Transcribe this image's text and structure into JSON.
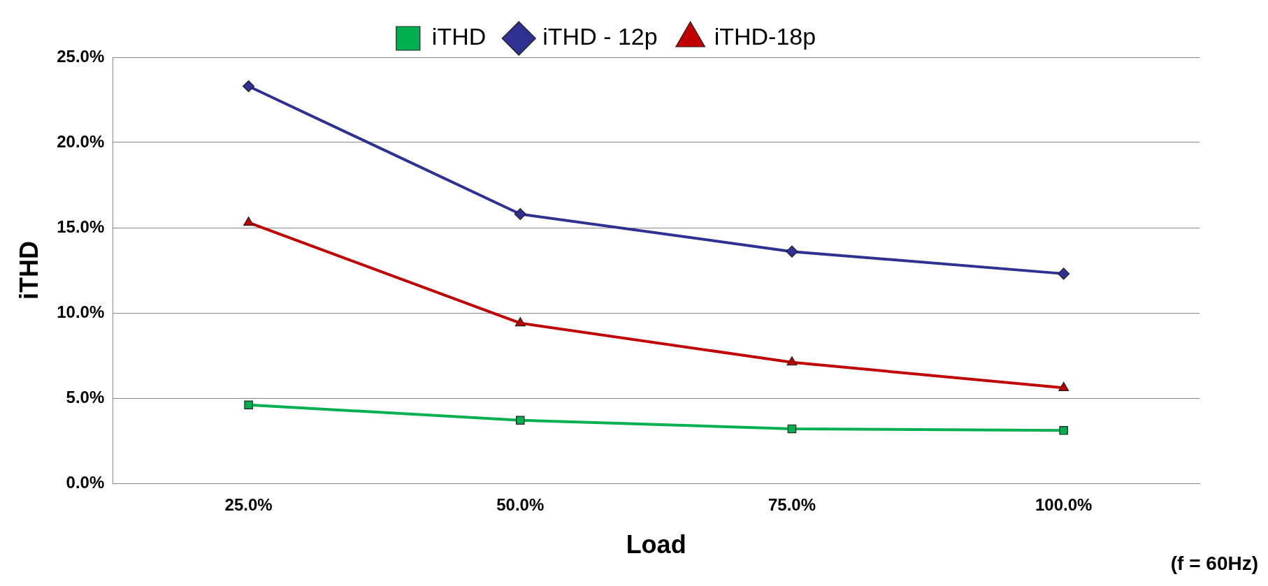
{
  "chart_data": {
    "type": "line",
    "xlabel": "Load",
    "ylabel": "iTHD",
    "categories": [
      "25.0%",
      "50.0%",
      "75.0%",
      "100.0%"
    ],
    "series": [
      {
        "name": "iTHD",
        "color": "#00b050",
        "marker": "square",
        "values": [
          4.6,
          3.7,
          3.2,
          3.1
        ]
      },
      {
        "name": "iTHD - 12p",
        "color": "#2e3192",
        "marker": "diamond",
        "values": [
          23.3,
          15.8,
          13.6,
          12.3
        ]
      },
      {
        "name": "iTHD-18p",
        "color": "#c00000",
        "marker": "triangle",
        "values": [
          15.3,
          9.4,
          7.1,
          5.6
        ]
      }
    ],
    "ylim": [
      0,
      25
    ],
    "yticks": [
      {
        "value": 0,
        "label": "0.0%"
      },
      {
        "value": 5,
        "label": "5.0%"
      },
      {
        "value": 10,
        "label": "10.0%"
      },
      {
        "value": 15,
        "label": "15.0%"
      },
      {
        "value": 20,
        "label": "20.0%"
      },
      {
        "value": 25,
        "label": "25.0%"
      }
    ],
    "grid": "y",
    "legend": "top",
    "line_style": "solid",
    "annotations": [
      "(f = 60Hz)"
    ]
  }
}
